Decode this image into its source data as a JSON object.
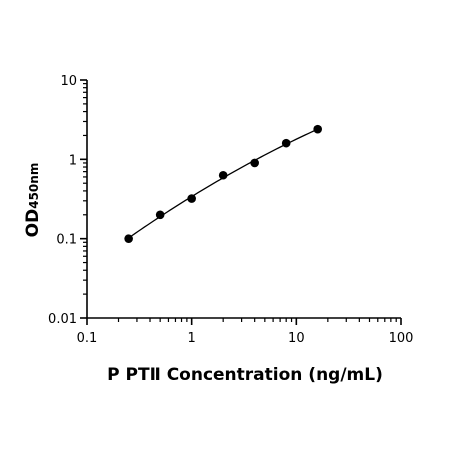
{
  "chart_data": {
    "type": "scatter",
    "xscale": "log",
    "yscale": "log",
    "xlim": [
      0.1,
      100
    ],
    "ylim": [
      0.01,
      10
    ],
    "x_ticks": [
      "0.1",
      "1",
      "10",
      "100"
    ],
    "y_ticks": [
      "0.01",
      "0.1",
      "1",
      "10"
    ],
    "xlabel": "P PTⅡ Concentration (ng/mL)",
    "ylabel_main": "OD",
    "ylabel_sub": "450nm",
    "grid": false,
    "series": [
      {
        "x": [
          0.25,
          0.5,
          1,
          2,
          4,
          8,
          16
        ],
        "y": [
          0.1,
          0.2,
          0.32,
          0.63,
          0.9,
          1.6,
          2.4
        ],
        "fit": "curve",
        "color": "#000000"
      }
    ]
  }
}
